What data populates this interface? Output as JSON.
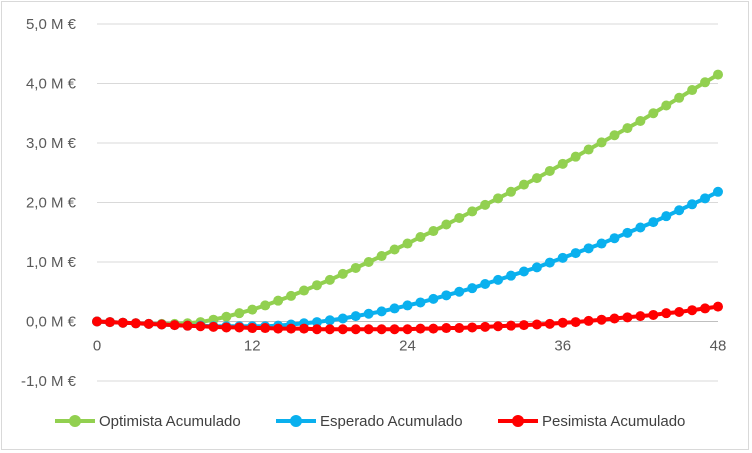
{
  "chart_data": {
    "type": "line",
    "title": "",
    "xlabel": "",
    "ylabel": "",
    "xlim": [
      0,
      48
    ],
    "ylim": [
      -1.0,
      5.0
    ],
    "x_ticks": [
      "0",
      "12",
      "24",
      "36",
      "48"
    ],
    "x_tick_values": [
      0,
      12,
      24,
      36,
      48
    ],
    "y_ticks": [
      "5,0 M €",
      "4,0 M €",
      "3,0 M €",
      "2,0 M €",
      "1,0 M €",
      "0,0 M €",
      "-1,0 M €"
    ],
    "y_tick_values": [
      5,
      4,
      3,
      2,
      1,
      0,
      -1
    ],
    "negative_tick_color": "#ff0000",
    "grid": "horizontal",
    "legend_position": "bottom",
    "x": [
      0,
      1,
      2,
      3,
      4,
      5,
      6,
      7,
      8,
      9,
      10,
      11,
      12,
      13,
      14,
      15,
      16,
      17,
      18,
      19,
      20,
      21,
      22,
      23,
      24,
      25,
      26,
      27,
      28,
      29,
      30,
      31,
      32,
      33,
      34,
      35,
      36,
      37,
      38,
      39,
      40,
      41,
      42,
      43,
      44,
      45,
      46,
      47,
      48
    ],
    "series": [
      {
        "name": "Optimista Acumulado",
        "color": "#92d050",
        "values": [
          0,
          -0.01,
          -0.02,
          -0.03,
          -0.04,
          -0.04,
          -0.04,
          -0.03,
          -0.01,
          0.03,
          0.08,
          0.14,
          0.2,
          0.27,
          0.35,
          0.43,
          0.52,
          0.61,
          0.7,
          0.8,
          0.9,
          1.0,
          1.1,
          1.21,
          1.31,
          1.42,
          1.52,
          1.63,
          1.74,
          1.85,
          1.96,
          2.07,
          2.18,
          2.3,
          2.41,
          2.53,
          2.65,
          2.77,
          2.89,
          3.01,
          3.13,
          3.25,
          3.37,
          3.5,
          3.63,
          3.76,
          3.89,
          4.02,
          4.15
        ]
      },
      {
        "name": "Esperado Acumulado",
        "color": "#0ab0ee",
        "values": [
          0,
          -0.01,
          -0.02,
          -0.03,
          -0.04,
          -0.05,
          -0.06,
          -0.07,
          -0.07,
          -0.08,
          -0.08,
          -0.08,
          -0.08,
          -0.08,
          -0.07,
          -0.05,
          -0.03,
          -0.01,
          0.02,
          0.05,
          0.09,
          0.13,
          0.17,
          0.22,
          0.27,
          0.32,
          0.38,
          0.44,
          0.5,
          0.56,
          0.63,
          0.7,
          0.77,
          0.84,
          0.91,
          0.99,
          1.07,
          1.15,
          1.23,
          1.31,
          1.4,
          1.49,
          1.58,
          1.67,
          1.77,
          1.87,
          1.97,
          2.07,
          2.18
        ]
      },
      {
        "name": "Pesimista Acumulado",
        "color": "#ff0000",
        "values": [
          0,
          -0.01,
          -0.02,
          -0.03,
          -0.04,
          -0.05,
          -0.06,
          -0.07,
          -0.08,
          -0.09,
          -0.1,
          -0.1,
          -0.11,
          -0.11,
          -0.12,
          -0.12,
          -0.12,
          -0.13,
          -0.13,
          -0.13,
          -0.13,
          -0.13,
          -0.13,
          -0.13,
          -0.13,
          -0.12,
          -0.12,
          -0.11,
          -0.11,
          -0.1,
          -0.09,
          -0.08,
          -0.07,
          -0.06,
          -0.05,
          -0.04,
          -0.02,
          -0.01,
          0.01,
          0.03,
          0.05,
          0.07,
          0.09,
          0.11,
          0.14,
          0.16,
          0.19,
          0.22,
          0.25
        ]
      }
    ]
  }
}
